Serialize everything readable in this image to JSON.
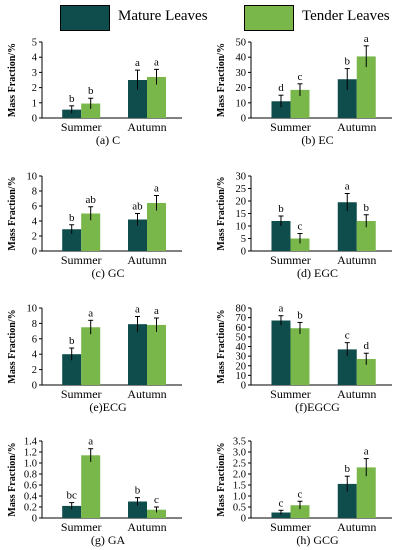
{
  "legend": {
    "items": [
      {
        "label": "Mature Leaves",
        "color": "#0f4d4d"
      },
      {
        "label": "Tender Leaves",
        "color": "#79b74a"
      }
    ]
  },
  "chart_data": [
    {
      "type": "bar",
      "caption": "(a) C",
      "ylabel": "Mass Fraction/%",
      "categories": [
        "Summer",
        "Autumn"
      ],
      "ylim": [
        0,
        5
      ],
      "yticks": [
        0,
        1,
        2,
        3,
        4,
        5
      ],
      "ytick_labels": [
        "0",
        "1",
        "2",
        "3",
        "4",
        "5"
      ],
      "series": [
        {
          "name": "Mature Leaves",
          "values": [
            0.55,
            2.5
          ],
          "errors": [
            0.25,
            0.65
          ],
          "labels": [
            "b",
            "a"
          ]
        },
        {
          "name": "Tender Leaves",
          "values": [
            0.95,
            2.7
          ],
          "errors": [
            0.35,
            0.5
          ],
          "labels": [
            "b",
            "a"
          ]
        }
      ]
    },
    {
      "type": "bar",
      "caption": "(b) EC",
      "ylabel": "Mass Fraction/%",
      "categories": [
        "Summer",
        "Autumn"
      ],
      "ylim": [
        0,
        50
      ],
      "yticks": [
        0,
        10,
        20,
        30,
        40,
        50
      ],
      "ytick_labels": [
        "0",
        "10",
        "20",
        "30",
        "40",
        "50"
      ],
      "series": [
        {
          "name": "Mature Leaves",
          "values": [
            11,
            25.5
          ],
          "errors": [
            4,
            7
          ],
          "labels": [
            "d",
            "b"
          ]
        },
        {
          "name": "Tender Leaves",
          "values": [
            18.5,
            40.5
          ],
          "errors": [
            4,
            7
          ],
          "labels": [
            "c",
            "a"
          ]
        }
      ]
    },
    {
      "type": "bar",
      "caption": "(c) GC",
      "ylabel": "Mass Fraction/%",
      "categories": [
        "Summer",
        "Autumn"
      ],
      "ylim": [
        0,
        10
      ],
      "yticks": [
        0,
        2,
        4,
        6,
        8,
        10
      ],
      "ytick_labels": [
        "0",
        "2",
        "4",
        "6",
        "8",
        "10"
      ],
      "series": [
        {
          "name": "Mature Leaves",
          "values": [
            2.9,
            4.2
          ],
          "errors": [
            0.6,
            0.8
          ],
          "labels": [
            "b",
            "ab"
          ]
        },
        {
          "name": "Tender Leaves",
          "values": [
            5.0,
            6.4
          ],
          "errors": [
            0.9,
            1.0
          ],
          "labels": [
            "ab",
            "a"
          ]
        }
      ]
    },
    {
      "type": "bar",
      "caption": "(d) EGC",
      "ylabel": "Mass Fraction/%",
      "categories": [
        "Summer",
        "Autumn"
      ],
      "ylim": [
        0,
        30
      ],
      "yticks": [
        0,
        5,
        10,
        15,
        20,
        25,
        30
      ],
      "ytick_labels": [
        "0",
        "5",
        "10",
        "15",
        "20",
        "25",
        "30"
      ],
      "series": [
        {
          "name": "Mature Leaves",
          "values": [
            12,
            19.5
          ],
          "errors": [
            2,
            3.5
          ],
          "labels": [
            "b",
            "a"
          ]
        },
        {
          "name": "Tender Leaves",
          "values": [
            5,
            12
          ],
          "errors": [
            2,
            2.5
          ],
          "labels": [
            "c",
            "b"
          ]
        }
      ]
    },
    {
      "type": "bar",
      "caption": "(e)ECG",
      "ylabel": "Mass Fraction/%",
      "categories": [
        "Summer",
        "Autumn"
      ],
      "ylim": [
        0,
        10
      ],
      "yticks": [
        0,
        2,
        4,
        6,
        8,
        10
      ],
      "ytick_labels": [
        "0",
        "2",
        "4",
        "6",
        "8",
        "10"
      ],
      "series": [
        {
          "name": "Mature Leaves",
          "values": [
            4.0,
            7.9
          ],
          "errors": [
            0.8,
            1.0
          ],
          "labels": [
            "b",
            "a"
          ]
        },
        {
          "name": "Tender Leaves",
          "values": [
            7.5,
            7.8
          ],
          "errors": [
            0.9,
            0.9
          ],
          "labels": [
            "a",
            "a"
          ]
        }
      ]
    },
    {
      "type": "bar",
      "caption": "(f)EGCG",
      "ylabel": "Mass Fraction/%",
      "categories": [
        "Summer",
        "Autumn"
      ],
      "ylim": [
        0,
        80
      ],
      "yticks": [
        0,
        10,
        20,
        30,
        40,
        50,
        60,
        70,
        80
      ],
      "ytick_labels": [
        "0",
        "10",
        "20",
        "30",
        "40",
        "50",
        "60",
        "70",
        "80"
      ],
      "series": [
        {
          "name": "Mature Leaves",
          "values": [
            67,
            37
          ],
          "errors": [
            5,
            7
          ],
          "labels": [
            "a",
            "c"
          ]
        },
        {
          "name": "Tender Leaves",
          "values": [
            59,
            27
          ],
          "errors": [
            6,
            6
          ],
          "labels": [
            "b",
            "d"
          ]
        }
      ]
    },
    {
      "type": "bar",
      "caption": "(g) GA",
      "ylabel": "Mass Fraction/%",
      "categories": [
        "Summer",
        "Autumn"
      ],
      "ylim": [
        0,
        1.4
      ],
      "yticks": [
        0,
        0.2,
        0.4,
        0.6,
        0.8,
        1.0,
        1.2,
        1.4
      ],
      "ytick_labels": [
        "0",
        "0.2",
        "0.4",
        "0.6",
        "0.8",
        "1.0",
        "1.2",
        "1.4"
      ],
      "series": [
        {
          "name": "Mature Leaves",
          "values": [
            0.22,
            0.3
          ],
          "errors": [
            0.06,
            0.07
          ],
          "labels": [
            "bc",
            "b"
          ]
        },
        {
          "name": "Tender Leaves",
          "values": [
            1.14,
            0.15
          ],
          "errors": [
            0.12,
            0.05
          ],
          "labels": [
            "a",
            "c"
          ]
        }
      ]
    },
    {
      "type": "bar",
      "caption": "(h) GCG",
      "ylabel": "Mass Fraction/%",
      "categories": [
        "Summer",
        "Autumn"
      ],
      "ylim": [
        0,
        3.5
      ],
      "yticks": [
        0,
        0.5,
        1.0,
        1.5,
        2.0,
        2.5,
        3.0,
        3.5
      ],
      "ytick_labels": [
        "0",
        "0.5",
        "1.0",
        "1.5",
        "2.0",
        "2.5",
        "3.0",
        "3.5"
      ],
      "series": [
        {
          "name": "Mature Leaves",
          "values": [
            0.25,
            1.55
          ],
          "errors": [
            0.1,
            0.35
          ],
          "labels": [
            "c",
            "b"
          ]
        },
        {
          "name": "Tender Leaves",
          "values": [
            0.58,
            2.3
          ],
          "errors": [
            0.18,
            0.4
          ],
          "labels": [
            "c",
            "a"
          ]
        }
      ]
    }
  ]
}
